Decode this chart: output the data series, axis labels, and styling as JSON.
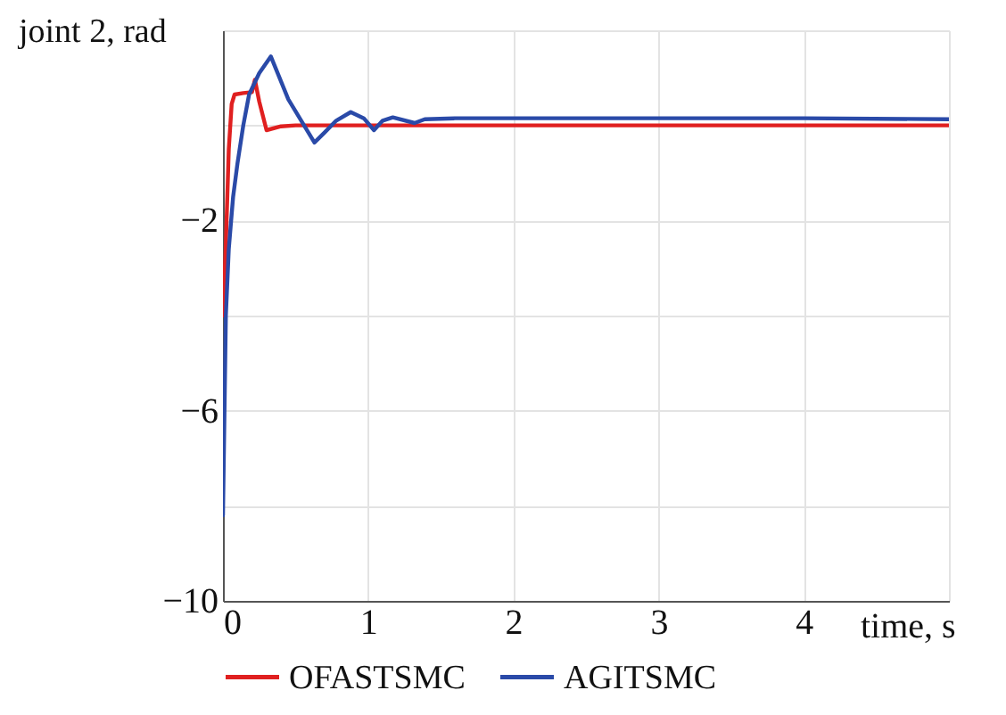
{
  "chart_data": {
    "type": "line",
    "xlabel": "time, s",
    "ylabel": "joint 2, rad",
    "xlim": [
      0,
      5
    ],
    "xticks": [
      0,
      1,
      2,
      3,
      4,
      {
        "value": 5,
        "label": null
      }
    ],
    "ylim": [
      -10,
      2
    ],
    "yticks": [
      {
        "value": 2,
        "label": null
      },
      {
        "value": 0,
        "label": null
      },
      -2,
      {
        "value": -4,
        "label": null
      },
      -6,
      {
        "value": -8,
        "label": null
      },
      -10
    ],
    "grid": true,
    "legend": "bottom",
    "line_style": "solid",
    "series": [
      {
        "name": "OFASTSMC",
        "color": "#e02020",
        "x": [
          0,
          0.02,
          0.04,
          0.06,
          0.08,
          0.14,
          0.2,
          0.22,
          0.25,
          0.3,
          0.4,
          0.5,
          1,
          2,
          3,
          4,
          5
        ],
        "values": [
          -4,
          -2.5,
          -0.5,
          0.45,
          0.65,
          0.68,
          0.7,
          0.96,
          0.5,
          -0.1,
          -0.02,
          0,
          0,
          0,
          0,
          0,
          0
        ]
      },
      {
        "name": "AGITSMC",
        "color": "#2a4aa8",
        "x": [
          0,
          0.02,
          0.04,
          0.07,
          0.1,
          0.14,
          0.18,
          0.25,
          0.33,
          0.45,
          0.63,
          0.7,
          0.78,
          0.88,
          0.97,
          1.04,
          1.1,
          1.17,
          1.32,
          1.39,
          1.6,
          2,
          3,
          4,
          5
        ],
        "values": [
          -8.2,
          -4,
          -2.6,
          -1.5,
          -0.8,
          0,
          0.65,
          1.1,
          1.45,
          0.55,
          -0.36,
          -0.15,
          0.1,
          0.28,
          0.15,
          -0.1,
          0.1,
          0.17,
          0.05,
          0.13,
          0.15,
          0.15,
          0.15,
          0.15,
          0.13
        ]
      }
    ]
  }
}
